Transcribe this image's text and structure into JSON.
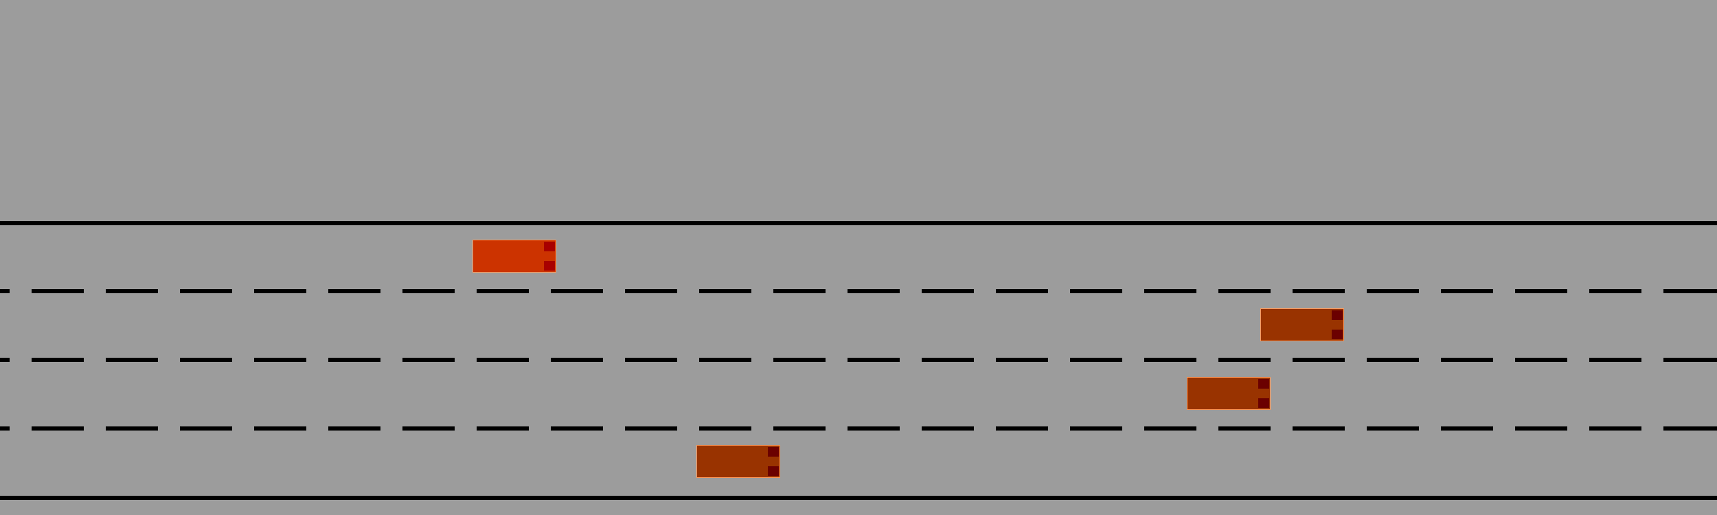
{
  "scene": {
    "background_color": "#9c9c9c",
    "lane_marking_color": "#000000",
    "lane_count": 4
  },
  "vehicles": [
    {
      "id": "ego",
      "lane": 1,
      "body_color": "#cc3300",
      "light_color": "#a80000",
      "outline_color": "#ff9a5a"
    },
    {
      "id": "other-1",
      "lane": 2,
      "body_color": "#993300",
      "light_color": "#6b0000",
      "outline_color": "#ff9a5a"
    },
    {
      "id": "other-2",
      "lane": 3,
      "body_color": "#993300",
      "light_color": "#6b0000",
      "outline_color": "#ff9a5a"
    },
    {
      "id": "other-3",
      "lane": 4,
      "body_color": "#993300",
      "light_color": "#6b0000",
      "outline_color": "#ff9a5a"
    }
  ]
}
